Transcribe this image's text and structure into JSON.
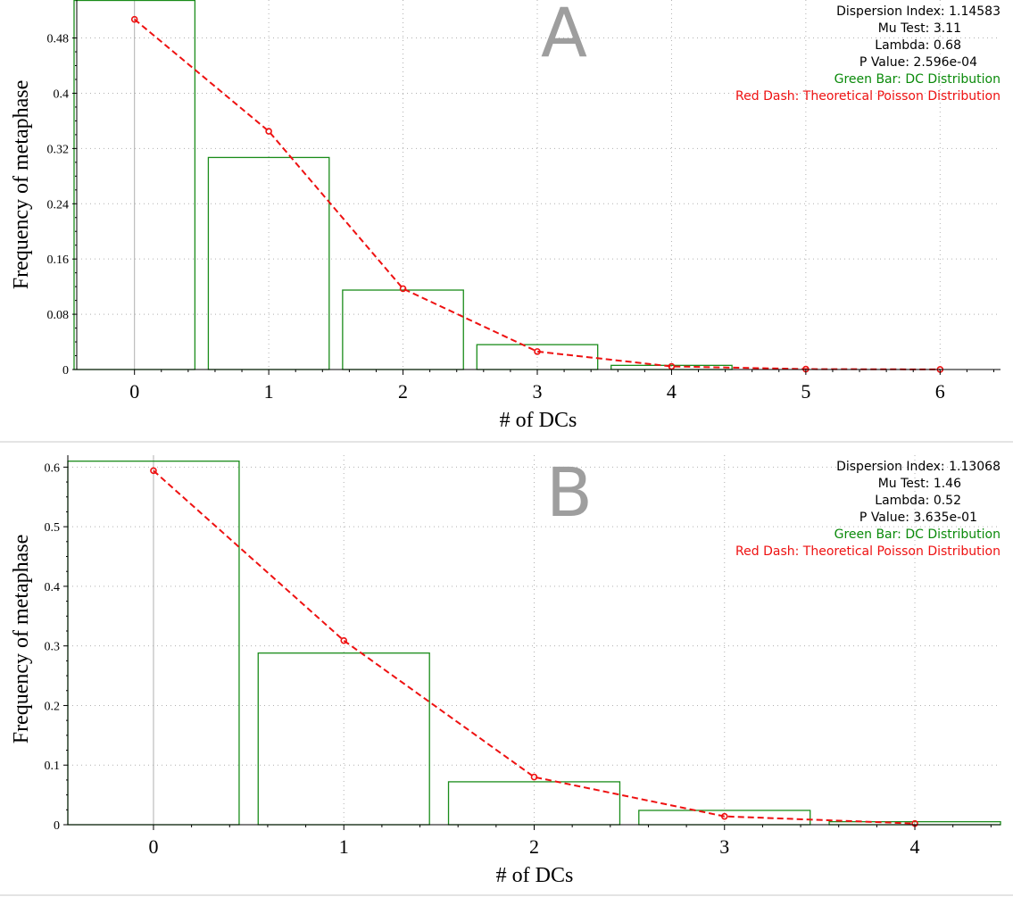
{
  "colors": {
    "bar": "#1a8c1a",
    "poisson": "#ee1111",
    "stats_text": "#000000",
    "legend_green": "#0a8a0a",
    "legend_red": "#ee1111",
    "grid": "#b0b0b0",
    "panel_letter": "#9e9e9e",
    "separator": "#c8c8c8"
  },
  "chart_data": [
    {
      "type": "bar",
      "panel_letter": "A",
      "xlabel": "# of DCs",
      "ylabel": "Frequency of metaphase",
      "x": [
        0,
        1,
        2,
        3,
        4,
        5,
        6
      ],
      "x_tick_labels": [
        "0",
        "1",
        "2",
        "3",
        "4",
        "5",
        "6"
      ],
      "xlim": [
        -0.43,
        6.45
      ],
      "ylim": [
        0,
        0.535
      ],
      "y_ticks": [
        0,
        0.08,
        0.16,
        0.24,
        0.32,
        0.4,
        0.48
      ],
      "y_tick_labels": [
        "0",
        "0.08",
        "0.16",
        "0.24",
        "0.32",
        "0.4",
        "0.48"
      ],
      "grid": true,
      "series": [
        {
          "name": "DC Distribution",
          "kind": "bar",
          "values": [
            0.535,
            0.307,
            0.115,
            0.036,
            0.006,
            0.0,
            0.0
          ]
        },
        {
          "name": "Theoretical Poisson Distribution",
          "kind": "line",
          "values": [
            0.507,
            0.345,
            0.117,
            0.026,
            0.0045,
            0.0006,
            0.0001
          ]
        }
      ],
      "stats": {
        "dispersion": "Dispersion Index: 1.14583",
        "mu": "Mu Test: 3.11",
        "lambda": "Lambda: 0.68",
        "pvalue": "P Value: 2.596e-04",
        "green": "Green Bar: DC Distribution",
        "red": "Red Dash: Theoretical Poisson Distribution"
      }
    },
    {
      "type": "bar",
      "panel_letter": "B",
      "xlabel": "# of DCs",
      "ylabel": "Frequency of metaphase",
      "x": [
        0,
        1,
        2,
        3,
        4
      ],
      "x_tick_labels": [
        "0",
        "1",
        "2",
        "3",
        "4"
      ],
      "xlim": [
        -0.45,
        4.45
      ],
      "ylim": [
        0,
        0.62
      ],
      "y_ticks": [
        0,
        0.1,
        0.2,
        0.3,
        0.4,
        0.5,
        0.6
      ],
      "y_tick_labels": [
        "0",
        "0.1",
        "0.2",
        "0.3",
        "0.4",
        "0.5",
        "0.6"
      ],
      "grid": true,
      "series": [
        {
          "name": "DC Distribution",
          "kind": "bar",
          "values": [
            0.61,
            0.288,
            0.072,
            0.024,
            0.005
          ]
        },
        {
          "name": "Theoretical Poisson Distribution",
          "kind": "line",
          "values": [
            0.594,
            0.309,
            0.08,
            0.014,
            0.002
          ]
        }
      ],
      "stats": {
        "dispersion": "Dispersion Index: 1.13068",
        "mu": "Mu Test: 1.46",
        "lambda": "Lambda: 0.52",
        "pvalue": "P Value: 3.635e-01",
        "green": "Green Bar: DC Distribution",
        "red": "Red Dash: Theoretical Poisson Distribution"
      }
    }
  ]
}
